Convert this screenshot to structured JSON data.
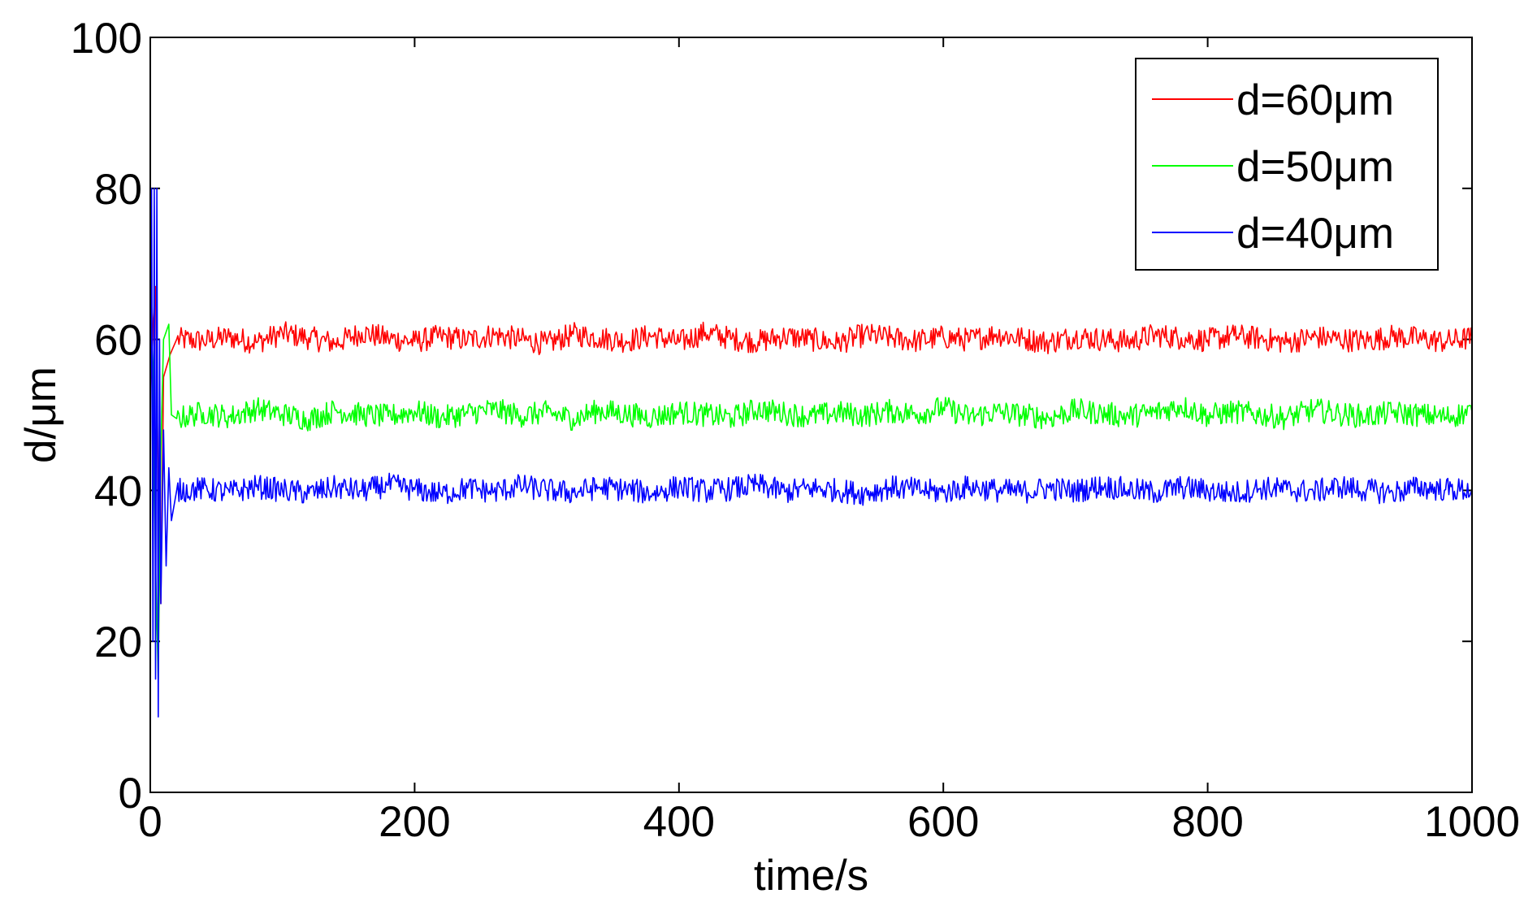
{
  "chart_data": {
    "type": "line",
    "xlabel": "time/s",
    "ylabel": "d/μm",
    "xlim": [
      0,
      1000
    ],
    "ylim": [
      0,
      100
    ],
    "xticks": [
      0,
      200,
      400,
      600,
      800,
      1000
    ],
    "yticks": [
      0,
      20,
      40,
      60,
      80,
      100
    ],
    "grid": false,
    "legend_position": "top-right",
    "series": [
      {
        "name": "d=60μm",
        "color": "#ff0000",
        "x": [
          0,
          2,
          4,
          6,
          8,
          10,
          15,
          20,
          40,
          60,
          80,
          100,
          120,
          140,
          160,
          180,
          200,
          220,
          240,
          260,
          280,
          300,
          320,
          340,
          360,
          380,
          400,
          420,
          440,
          460,
          480,
          500,
          520,
          540,
          560,
          580,
          600,
          620,
          640,
          660,
          680,
          700,
          720,
          740,
          760,
          780,
          800,
          820,
          840,
          860,
          880,
          900,
          920,
          940,
          960,
          980,
          1000
        ],
        "y": [
          53,
          62,
          67,
          40,
          25,
          55,
          58,
          60,
          59.8,
          60.3,
          59.6,
          60.8,
          60.2,
          59.5,
          60.9,
          60.1,
          59.7,
          60.4,
          59.9,
          60.6,
          60.0,
          59.4,
          60.7,
          60.2,
          59.8,
          60.5,
          59.6,
          60.9,
          60.1,
          59.7,
          60.4,
          60.0,
          59.5,
          60.6,
          60.2,
          59.8,
          60.3,
          59.9,
          60.7,
          60.1,
          59.6,
          60.4,
          60.0,
          59.7,
          60.6,
          60.2,
          59.9,
          60.5,
          60.1,
          59.6,
          60.3,
          60.0,
          59.8,
          60.4,
          60.1,
          59.7,
          60.2
        ]
      },
      {
        "name": "d=50μm",
        "color": "#00ff00",
        "x": [
          0,
          2,
          4,
          6,
          8,
          10,
          14,
          16,
          20,
          40,
          60,
          80,
          100,
          120,
          140,
          160,
          180,
          200,
          220,
          240,
          260,
          280,
          300,
          320,
          340,
          360,
          380,
          400,
          420,
          440,
          460,
          480,
          500,
          520,
          540,
          560,
          580,
          600,
          620,
          640,
          660,
          680,
          700,
          720,
          740,
          760,
          780,
          800,
          820,
          840,
          860,
          880,
          900,
          920,
          940,
          960,
          980,
          1000
        ],
        "y": [
          66,
          55,
          30,
          15,
          45,
          60,
          62,
          50,
          49.5,
          50.3,
          49.7,
          50.8,
          50.1,
          49.4,
          50.6,
          50.0,
          49.8,
          50.5,
          49.6,
          50.2,
          50.7,
          49.9,
          50.3,
          49.5,
          50.6,
          50.1,
          49.7,
          50.4,
          50.0,
          49.6,
          50.8,
          50.2,
          49.8,
          50.3,
          49.9,
          50.5,
          50.1,
          51.0,
          49.7,
          50.4,
          50.0,
          49.6,
          50.6,
          50.2,
          49.8,
          50.3,
          51.2,
          49.9,
          50.4,
          50.0,
          49.6,
          50.7,
          50.1,
          49.8,
          50.3,
          50.0,
          49.7,
          50.4
        ]
      },
      {
        "name": "d=40μm",
        "color": "#0000ff",
        "x": [
          0,
          1,
          2,
          3,
          4,
          5,
          6,
          7,
          8,
          10,
          12,
          14,
          16,
          20,
          40,
          60,
          80,
          100,
          120,
          140,
          160,
          180,
          200,
          220,
          240,
          260,
          280,
          300,
          320,
          340,
          360,
          380,
          400,
          420,
          440,
          460,
          480,
          500,
          520,
          540,
          560,
          580,
          600,
          620,
          640,
          660,
          680,
          700,
          720,
          740,
          760,
          780,
          800,
          820,
          840,
          860,
          880,
          900,
          920,
          940,
          960,
          980,
          1000
        ],
        "y": [
          40,
          80,
          20,
          80,
          15,
          80,
          10,
          60,
          25,
          48,
          30,
          43,
          36,
          40,
          40.2,
          39.7,
          40.5,
          40.0,
          39.6,
          40.4,
          39.9,
          40.7,
          40.1,
          39.5,
          40.3,
          39.8,
          40.6,
          40.0,
          39.7,
          40.4,
          40.1,
          39.6,
          40.5,
          39.9,
          40.2,
          40.7,
          39.8,
          40.3,
          40.0,
          39.6,
          40.4,
          40.1,
          39.7,
          40.5,
          40.0,
          39.8,
          40.3,
          39.9,
          40.6,
          40.1,
          39.7,
          40.4,
          40.0,
          39.6,
          40.3,
          40.1,
          39.8,
          40.5,
          40.0,
          39.7,
          40.4,
          40.1,
          40.0
        ]
      }
    ]
  }
}
